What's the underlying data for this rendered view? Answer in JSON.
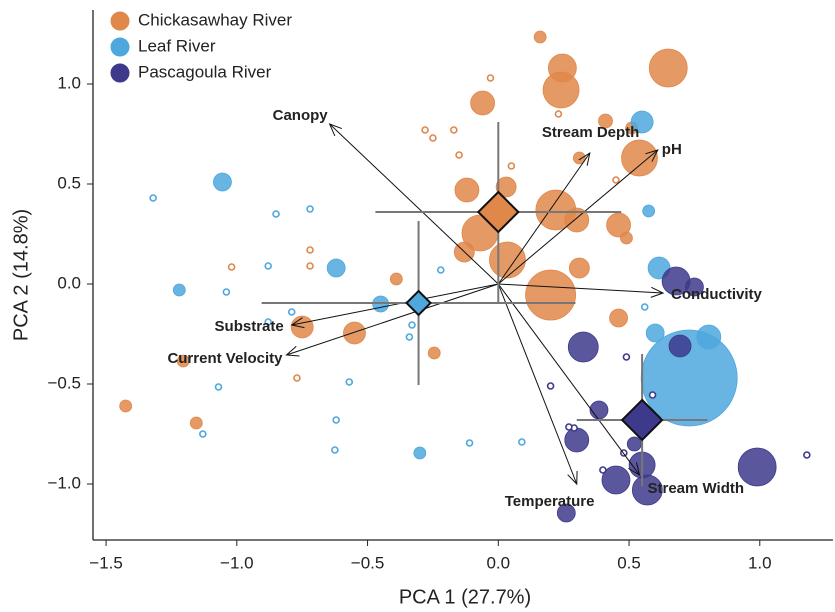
{
  "chart_data": {
    "type": "scatter",
    "xlabel": "PCA 1 (27.7%)",
    "ylabel": "PCA 2 (14.8%)",
    "xlim": [
      -1.55,
      1.28
    ],
    "ylim": [
      -1.28,
      1.37
    ],
    "xticks": [
      {
        "value": -1.5,
        "label": "−1.5"
      },
      {
        "value": -1.0,
        "label": "−1.0"
      },
      {
        "value": -0.5,
        "label": "−0.5"
      },
      {
        "value": 0.0,
        "label": "0.0"
      },
      0.5,
      {
        "value": 1.0,
        "label": "1.0"
      }
    ],
    "yticks": [
      {
        "value": 1.0,
        "label": "1.0"
      },
      0.5,
      {
        "value": 0.0,
        "label": "0.0"
      },
      {
        "value": -0.5,
        "label": "−0.5"
      },
      {
        "value": -1.0,
        "label": "−1.0"
      }
    ],
    "legend": "upper left",
    "series": [
      {
        "name": "Chickasawhay River",
        "color": "#e0874a",
        "x": [
          0.16,
          0.245,
          0.24,
          0.65,
          -0.06,
          0.41,
          0.51,
          0.54,
          0.31,
          0.22,
          0.3,
          0.03,
          -0.12,
          -0.07,
          0.035,
          0.2,
          0.31,
          0.46,
          0.49,
          -0.13,
          -0.39,
          -0.55,
          -0.75,
          -0.245,
          -1.205,
          -1.155,
          -1.425,
          0.46,
          -0.03,
          -0.17,
          -0.28,
          -0.25,
          -0.15,
          0.05,
          0.23,
          -1.02,
          -0.72,
          -0.72,
          -0.77,
          0.45
        ],
        "y": [
          1.235,
          1.08,
          0.97,
          1.08,
          0.905,
          0.815,
          0.78,
          0.63,
          0.63,
          0.37,
          0.32,
          0.485,
          0.47,
          0.255,
          0.12,
          -0.055,
          0.08,
          0.295,
          0.23,
          0.16,
          0.025,
          -0.245,
          -0.215,
          -0.345,
          -0.385,
          -0.695,
          -0.61,
          -0.17,
          1.03,
          0.77,
          0.77,
          0.73,
          0.645,
          0.59,
          0.85,
          0.085,
          0.17,
          0.09,
          -0.47,
          0.52
        ],
        "size": [
          6,
          14,
          18,
          19,
          12,
          7,
          6,
          18,
          6,
          20,
          12,
          10,
          12,
          18,
          18,
          25,
          10,
          12,
          6,
          10,
          6,
          11,
          11,
          6,
          6,
          6,
          6,
          9,
          3,
          3,
          3,
          3,
          3,
          3,
          3,
          3,
          3,
          3,
          3,
          3
        ],
        "centroid": {
          "x": 0.0,
          "y": 0.36,
          "xerr": 0.47,
          "yerr": 0.45
        }
      },
      {
        "name": "Leaf River",
        "color": "#4ea7dd",
        "x": [
          -1.055,
          -1.22,
          -0.62,
          -0.45,
          0.55,
          0.575,
          0.615,
          0.6,
          0.805,
          0.73,
          -0.3,
          -1.32,
          -0.85,
          -0.72,
          -0.88,
          -1.04,
          -0.79,
          -0.88,
          -0.34,
          -0.33,
          -0.22,
          -0.57,
          -0.62,
          -0.625,
          -1.13,
          -1.07,
          -0.11,
          0.09,
          0.56
        ],
        "y": [
          0.51,
          -0.03,
          0.08,
          -0.1,
          0.81,
          0.365,
          0.08,
          -0.245,
          -0.265,
          -0.47,
          -0.845,
          0.43,
          0.35,
          0.375,
          0.09,
          -0.04,
          -0.14,
          -0.19,
          -0.265,
          -0.205,
          0.07,
          -0.49,
          -0.68,
          -0.83,
          -0.75,
          -0.515,
          -0.795,
          -0.79,
          -0.115
        ],
        "size": [
          9,
          6,
          9,
          8,
          11,
          6,
          11,
          9,
          12,
          48,
          6,
          3,
          3,
          3,
          3,
          3,
          3,
          3,
          3,
          3,
          3,
          3,
          3,
          3,
          3,
          3,
          3,
          3,
          3
        ],
        "centroid": {
          "x": -0.305,
          "y": -0.095,
          "xerr": 0.6,
          "yerr": 0.41
        }
      },
      {
        "name": "Pascagoula River",
        "color": "#3d3a8c",
        "x": [
          0.68,
          0.75,
          0.325,
          0.695,
          0.385,
          0.3,
          0.45,
          0.57,
          0.55,
          0.99,
          0.26,
          0.52,
          0.2,
          0.29,
          0.49,
          0.59,
          1.18,
          0.4,
          0.48,
          0.27
        ],
        "y": [
          0.015,
          -0.015,
          -0.315,
          -0.31,
          -0.63,
          -0.78,
          -0.98,
          -1.03,
          -0.905,
          -0.915,
          -1.145,
          -0.8,
          -0.51,
          -0.72,
          -0.365,
          -0.555,
          -0.855,
          -0.93,
          -0.845,
          -0.715
        ],
        "size": [
          14,
          9,
          15,
          11,
          9,
          12,
          14,
          15,
          13,
          19,
          9,
          7,
          3,
          3,
          3,
          3,
          3,
          3,
          3,
          3
        ],
        "centroid": {
          "x": 0.55,
          "y": -0.68,
          "xerr": 0.25,
          "yerr": 0.33
        }
      }
    ],
    "loadings": [
      {
        "label": "Canopy",
        "x": -0.645,
        "y": 0.8
      },
      {
        "label": "Stream Depth",
        "x": 0.35,
        "y": 0.655
      },
      {
        "label": "pH",
        "x": 0.61,
        "y": 0.67
      },
      {
        "label": "Conductivity",
        "x": 0.63,
        "y": -0.045
      },
      {
        "label": "Stream Width",
        "x": 0.54,
        "y": -0.955
      },
      {
        "label": "Temperature",
        "x": 0.3,
        "y": -1.0
      },
      {
        "label": "Substrate",
        "x": -0.79,
        "y": -0.205
      },
      {
        "label": "Current Velocity",
        "x": -0.81,
        "y": -0.355
      }
    ]
  }
}
